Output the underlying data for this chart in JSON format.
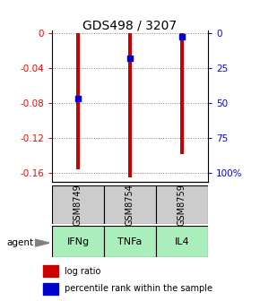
{
  "title": "GDS498 / 3207",
  "bars": [
    {
      "x": 0,
      "log_ratio": -0.155,
      "percentile": 0.47,
      "sample": "GSM8749",
      "agent": "IFNg"
    },
    {
      "x": 1,
      "log_ratio": -0.165,
      "percentile": 0.18,
      "sample": "GSM8754",
      "agent": "TNFa"
    },
    {
      "x": 2,
      "log_ratio": -0.138,
      "percentile": 0.03,
      "sample": "GSM8759",
      "agent": "IL4"
    }
  ],
  "ylim_left": [
    -0.17,
    0.003
  ],
  "yticks_left": [
    0,
    -0.04,
    -0.08,
    -0.12,
    -0.16
  ],
  "yticks_right": [
    100,
    75,
    50,
    25,
    0
  ],
  "bar_color": "#cc0000",
  "dot_color": "#0000cc",
  "sample_bg": "#cccccc",
  "agent_bg": "#aaeebb",
  "bar_width": 0.08,
  "dot_size": 18,
  "title_fontsize": 10
}
